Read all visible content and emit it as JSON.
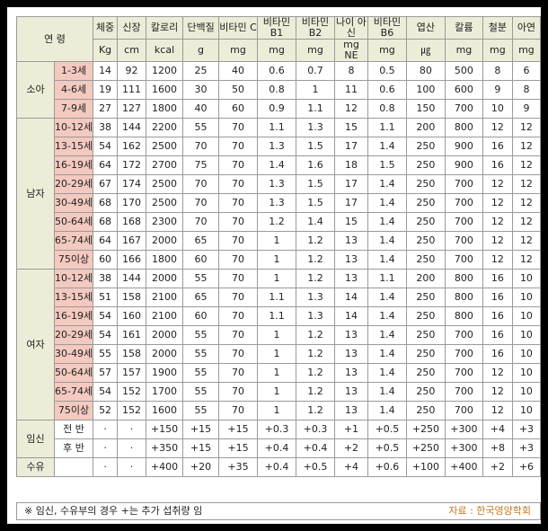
{
  "header": {
    "group": "연 령",
    "columns": [
      {
        "name": "체중",
        "unit": "Kg"
      },
      {
        "name": "신장",
        "unit": "cm"
      },
      {
        "name": "칼로리",
        "unit": "kcal"
      },
      {
        "name": "단백질",
        "unit": "g"
      },
      {
        "name": "비타민 C",
        "unit": "mg"
      },
      {
        "name": "비타민 B1",
        "unit": "mg"
      },
      {
        "name": "비타민 B2",
        "unit": "mg"
      },
      {
        "name": "나이 아신",
        "unit": "mg NE"
      },
      {
        "name": "비타민 B6",
        "unit": "mg"
      },
      {
        "name": "엽산",
        "unit": "㎍"
      },
      {
        "name": "칼륨",
        "unit": "mg"
      },
      {
        "name": "철분",
        "unit": "mg"
      },
      {
        "name": "아연",
        "unit": "mg"
      }
    ]
  },
  "groups": [
    {
      "label": "소아",
      "rows": [
        {
          "age": "1-3세",
          "values": [
            "14",
            "92",
            "1200",
            "25",
            "40",
            "0.6",
            "0.7",
            "8",
            "0.5",
            "80",
            "500",
            "8",
            "6"
          ]
        },
        {
          "age": "4-6세",
          "values": [
            "19",
            "111",
            "1600",
            "30",
            "50",
            "0.8",
            "1",
            "11",
            "0.6",
            "100",
            "600",
            "9",
            "8"
          ]
        },
        {
          "age": "7-9세",
          "values": [
            "27",
            "127",
            "1800",
            "40",
            "60",
            "0.9",
            "1.1",
            "12",
            "0.8",
            "150",
            "700",
            "10",
            "9"
          ]
        }
      ]
    },
    {
      "label": "남자",
      "rows": [
        {
          "age": "10-12세",
          "values": [
            "38",
            "144",
            "2200",
            "55",
            "70",
            "1.1",
            "1.3",
            "15",
            "1.1",
            "200",
            "800",
            "12",
            "12"
          ]
        },
        {
          "age": "13-15세",
          "values": [
            "54",
            "162",
            "2500",
            "70",
            "70",
            "1.3",
            "1.5",
            "17",
            "1.4",
            "250",
            "900",
            "16",
            "12"
          ]
        },
        {
          "age": "16-19세",
          "values": [
            "64",
            "172",
            "2700",
            "75",
            "70",
            "1.4",
            "1.6",
            "18",
            "1.5",
            "250",
            "900",
            "16",
            "12"
          ]
        },
        {
          "age": "20-29세",
          "values": [
            "67",
            "174",
            "2500",
            "70",
            "70",
            "1.3",
            "1.5",
            "17",
            "1.4",
            "250",
            "700",
            "12",
            "12"
          ]
        },
        {
          "age": "30-49세",
          "values": [
            "68",
            "170",
            "2500",
            "70",
            "70",
            "1.3",
            "1.5",
            "17",
            "1.4",
            "250",
            "700",
            "12",
            "12"
          ]
        },
        {
          "age": "50-64세",
          "values": [
            "68",
            "168",
            "2300",
            "70",
            "70",
            "1.2",
            "1.4",
            "15",
            "1.4",
            "250",
            "700",
            "12",
            "12"
          ]
        },
        {
          "age": "65-74세",
          "values": [
            "64",
            "167",
            "2000",
            "65",
            "70",
            "1",
            "1.2",
            "13",
            "1.4",
            "250",
            "700",
            "12",
            "12"
          ]
        },
        {
          "age": "75이상",
          "values": [
            "60",
            "166",
            "1800",
            "60",
            "70",
            "1",
            "1.2",
            "13",
            "1.4",
            "250",
            "700",
            "12",
            "12"
          ]
        }
      ]
    },
    {
      "label": "여자",
      "rows": [
        {
          "age": "10-12세",
          "values": [
            "38",
            "144",
            "2000",
            "55",
            "70",
            "1",
            "1.2",
            "13",
            "1.1",
            "200",
            "800",
            "16",
            "10"
          ]
        },
        {
          "age": "13-15세",
          "values": [
            "51",
            "158",
            "2100",
            "65",
            "70",
            "1.1",
            "1.3",
            "14",
            "1.4",
            "250",
            "800",
            "16",
            "10"
          ]
        },
        {
          "age": "16-19세",
          "values": [
            "54",
            "160",
            "2100",
            "60",
            "70",
            "1.1",
            "1.3",
            "14",
            "1.4",
            "250",
            "800",
            "16",
            "10"
          ]
        },
        {
          "age": "20-29세",
          "values": [
            "54",
            "161",
            "2000",
            "55",
            "70",
            "1",
            "1.2",
            "13",
            "1.4",
            "250",
            "700",
            "16",
            "10"
          ]
        },
        {
          "age": "30-49세",
          "values": [
            "55",
            "158",
            "2000",
            "55",
            "70",
            "1",
            "1.2",
            "13",
            "1.4",
            "250",
            "700",
            "16",
            "10"
          ]
        },
        {
          "age": "50-64세",
          "values": [
            "57",
            "157",
            "1900",
            "55",
            "70",
            "1",
            "1.2",
            "13",
            "1.4",
            "250",
            "700",
            "12",
            "10"
          ]
        },
        {
          "age": "65-74세",
          "values": [
            "54",
            "152",
            "1700",
            "55",
            "70",
            "1",
            "1.2",
            "13",
            "1.4",
            "250",
            "700",
            "12",
            "10"
          ]
        },
        {
          "age": "75이상",
          "values": [
            "52",
            "152",
            "1600",
            "55",
            "70",
            "1",
            "1.2",
            "13",
            "1.4",
            "250",
            "700",
            "12",
            "10"
          ]
        }
      ]
    },
    {
      "label": "임신",
      "rows": [
        {
          "age": "전 반",
          "values": [
            "·",
            "·",
            "+150",
            "+15",
            "+15",
            "+0.3",
            "+0.3",
            "+1",
            "+0.5",
            "+250",
            "+300",
            "+4",
            "+3"
          ]
        },
        {
          "age": "후 반",
          "values": [
            "·",
            "·",
            "+350",
            "+15",
            "+15",
            "+0.4",
            "+0.4",
            "+2",
            "+0.5",
            "+250",
            "+300",
            "+8",
            "+3"
          ]
        }
      ]
    },
    {
      "label": "수유",
      "rows": [
        {
          "age": "",
          "values": [
            "·",
            "·",
            "+400",
            "+20",
            "+35",
            "+0.4",
            "+0.5",
            "+4",
            "+0.6",
            "+100",
            "+400",
            "+2",
            "+6"
          ]
        }
      ]
    }
  ],
  "footer": {
    "note": "※ 임신, 수유부의 경우 +는 추가 섭취량 임",
    "source": "자료 : 한국영양학회"
  }
}
